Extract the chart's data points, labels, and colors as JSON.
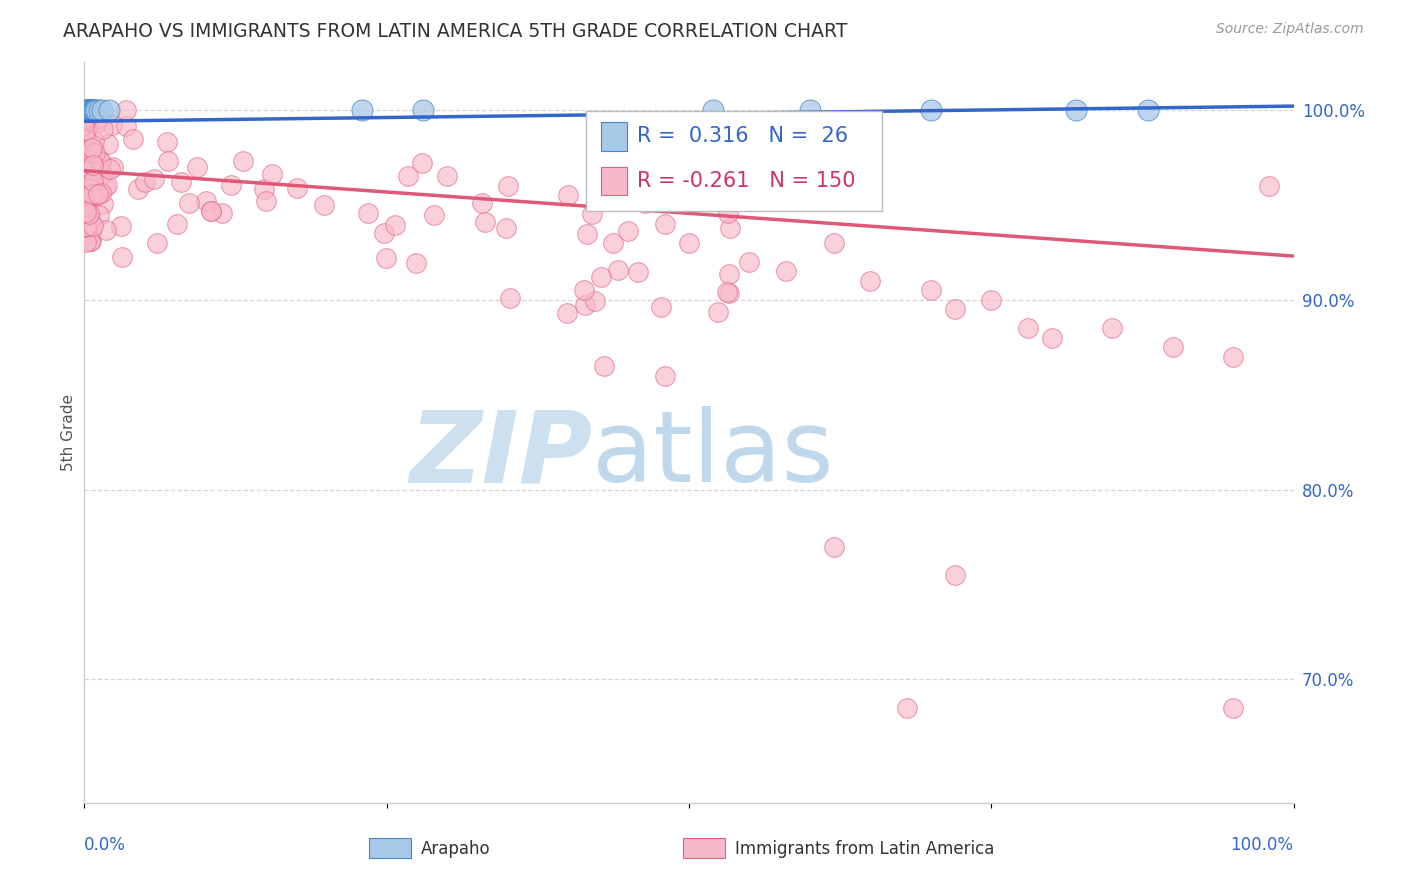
{
  "title": "ARAPAHO VS IMMIGRANTS FROM LATIN AMERICA 5TH GRADE CORRELATION CHART",
  "source_text": "Source: ZipAtlas.com",
  "ylabel": "5th Grade",
  "ytick_values": [
    1.0,
    0.9,
    0.8,
    0.7
  ],
  "ytick_labels": [
    "100.0%",
    "90.0%",
    "80.0%",
    "70.0%"
  ],
  "xlim": [
    0.0,
    1.0
  ],
  "ylim": [
    0.635,
    1.025
  ],
  "legend_blue_r": "0.316",
  "legend_blue_n": "26",
  "legend_pink_r": "-0.261",
  "legend_pink_n": "150",
  "legend_label_blue": "Arapaho",
  "legend_label_pink": "Immigrants from Latin America",
  "blue_fill": "#a8c8e8",
  "pink_fill": "#f8b8c8",
  "blue_edge": "#4488cc",
  "pink_edge": "#e06080",
  "blue_line": "#3366cc",
  "pink_line": "#e05878",
  "watermark_zip_color": "#cce0f0",
  "watermark_atlas_color": "#c0d8ec",
  "background_color": "#ffffff",
  "grid_color": "#cccccc",
  "title_color": "#333333",
  "source_color": "#999999",
  "axis_label_color": "#3366cc",
  "ylabel_color": "#555555",
  "legend_text_blue_color": "#3366cc",
  "legend_text_pink_color": "#cc3366",
  "blue_line_start_y": 0.994,
  "blue_line_end_y": 1.002,
  "pink_line_start_y": 0.968,
  "pink_line_end_y": 0.923
}
